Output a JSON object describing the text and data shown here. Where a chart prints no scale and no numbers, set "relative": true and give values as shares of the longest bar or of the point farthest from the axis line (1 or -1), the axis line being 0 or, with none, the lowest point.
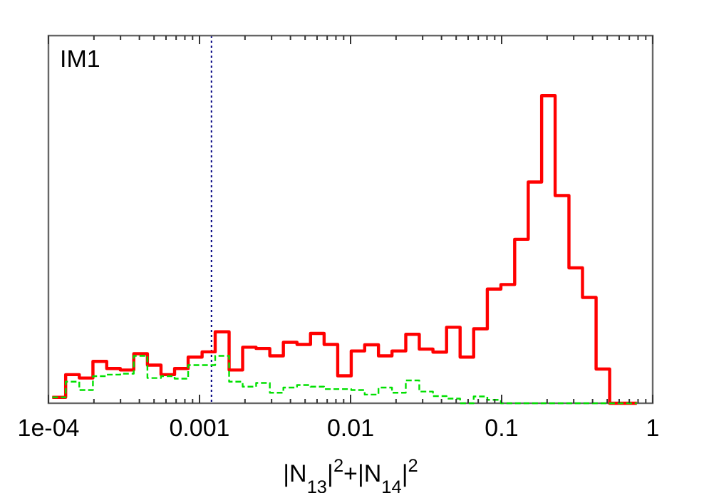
{
  "chart_data": {
    "type": "step",
    "title": "IM1",
    "xlabel": "|N$_{13}$|$^{2}$+|N$_{14}$|$^{2}$",
    "relative": true,
    "log": "x",
    "grid": false,
    "xlim": [
      0.0001,
      1
    ],
    "xticks": [
      {
        "value": 0.0001,
        "label": "1e-04"
      },
      0.001,
      0.01,
      0.1,
      1
    ],
    "x": [
      0.000106,
      0.00013,
      0.00016,
      0.000197,
      0.000243,
      0.000299,
      0.000367,
      0.000452,
      0.000556,
      0.000684,
      0.000841,
      0.00104,
      0.00127,
      0.00157,
      0.00193,
      0.00237,
      0.00292,
      0.00359,
      0.00442,
      0.00543,
      0.00668,
      0.00822,
      0.0101,
      0.0124,
      0.0153,
      0.0188,
      0.0232,
      0.0285,
      0.0351,
      0.0432,
      0.0531,
      0.0653,
      0.0804,
      0.0989,
      0.122,
      0.15,
      0.184,
      0.226,
      0.279,
      0.343,
      0.422,
      0.519,
      0.638,
      0.785
    ],
    "series": [
      {
        "color": "#ff0000",
        "line_style": "solid",
        "values": [
          0.019,
          0.093,
          0.082,
          0.136,
          0.113,
          0.108,
          0.161,
          0.124,
          0.093,
          0.113,
          0.15,
          0.167,
          0.232,
          0.108,
          0.182,
          0.178,
          0.154,
          0.198,
          0.191,
          0.227,
          0.191,
          0.089,
          0.17,
          0.19,
          0.154,
          0.17,
          0.224,
          0.176,
          0.166,
          0.247,
          0.15,
          0.242,
          0.371,
          0.386,
          0.533,
          0.719,
          1,
          0.675,
          0.44,
          0.344,
          0.111,
          0,
          0,
          0
        ]
      },
      {
        "color": "#00e000",
        "line_style": "dashed",
        "values": [
          0.019,
          0.07,
          0.043,
          0.088,
          0.093,
          0.096,
          0.154,
          0.082,
          0.088,
          0.08,
          0.124,
          0.124,
          0.154,
          0.07,
          0.054,
          0.066,
          0.034,
          0.051,
          0.059,
          0.054,
          0.046,
          0.046,
          0.043,
          0.028,
          0.051,
          0.034,
          0.074,
          0.038,
          0.023,
          0.015,
          0,
          0.022,
          0.011,
          0,
          0,
          0,
          0,
          0,
          0,
          0,
          0,
          0,
          0,
          0
        ]
      }
    ],
    "ref_lines": [
      {
        "axis": "x",
        "value": 0.0012,
        "color": "#000080",
        "line_style": "dotted"
      }
    ]
  }
}
